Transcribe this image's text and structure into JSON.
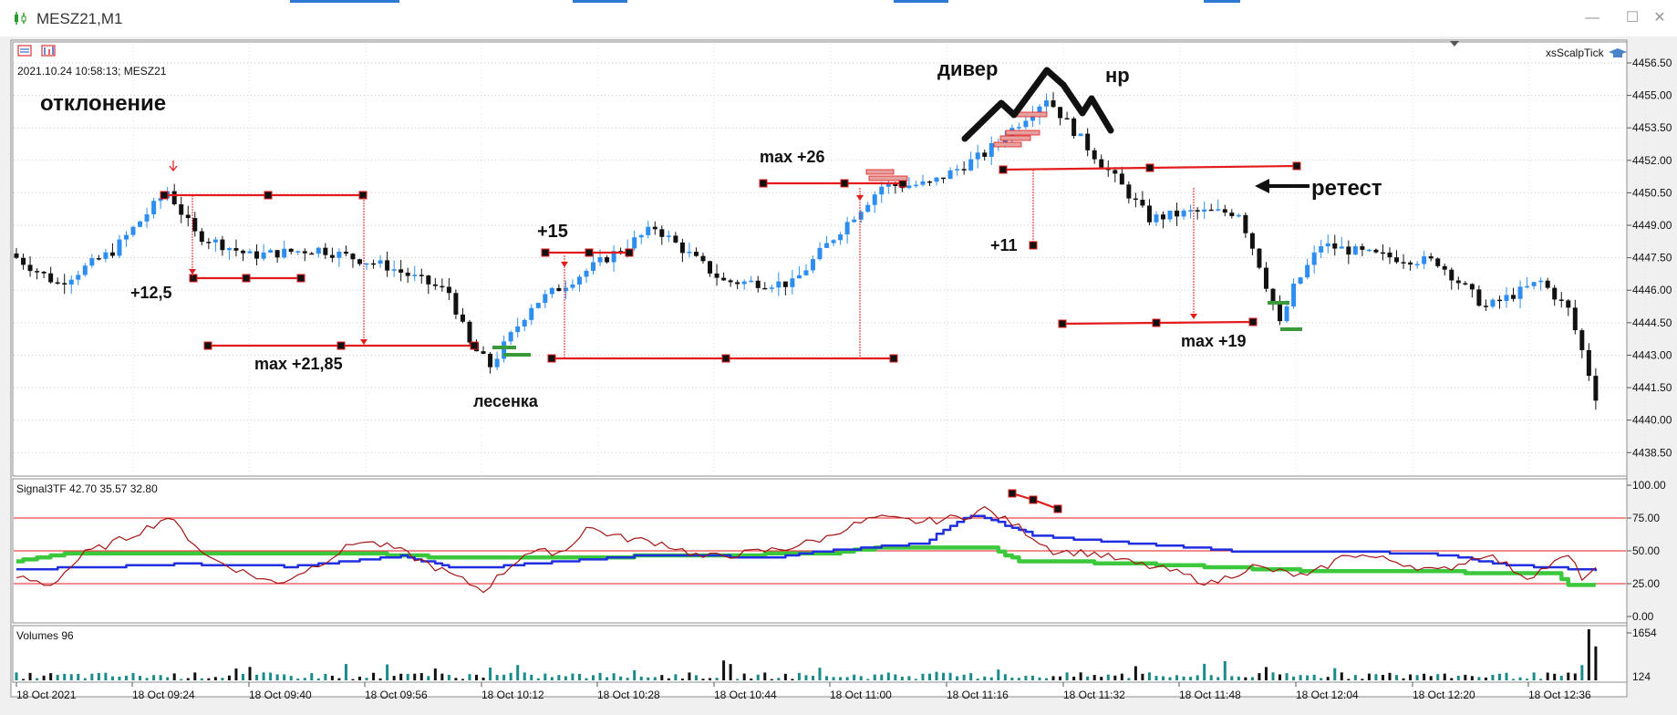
{
  "window": {
    "title": "MESZ21,M1",
    "minimize_icon": "minimize-icon",
    "maximize_icon": "maximize-icon",
    "close_icon": "close-icon"
  },
  "colors": {
    "bull": "#2d8ef0",
    "bear": "#111111",
    "annot_red": "#e31b1b",
    "grid": "#c8c8c8",
    "bg": "#f0f0f0",
    "rsi": "#a31515",
    "blue_line": "#1f2fe0",
    "green_line": "#3cc83c",
    "vol_up": "#1a8a8a",
    "vol_down": "#111111"
  },
  "chart_info": {
    "datetime_label": "2021.10.24 10:58:13; MESZ21",
    "indicator_name": "xsScalpTick"
  },
  "chart_data": [
    {
      "type": "candlestick",
      "ylim": [
        4437.5,
        4457.3
      ],
      "y_ticks": [
        "4456.50",
        "4455.00",
        "4453.50",
        "4452.00",
        "4450.50",
        "4449.00",
        "4447.50",
        "4446.00",
        "4444.50",
        "4443.00",
        "4441.50",
        "4440.00",
        "4438.50"
      ],
      "x_labels": [
        "18 Oct 2021",
        "18 Oct 09:24",
        "18 Oct 09:40",
        "18 Oct 09:56",
        "18 Oct 10:12",
        "18 Oct 10:28",
        "18 Oct 10:44",
        "18 Oct 11:00",
        "18 Oct 11:16",
        "18 Oct 11:32",
        "18 Oct 11:48",
        "18 Oct 12:04",
        "18 Oct 12:20",
        "18 Oct 12:36"
      ],
      "close_anchors": [
        [
          0,
          4447.5
        ],
        [
          6,
          4446.3
        ],
        [
          14,
          4447.8
        ],
        [
          22,
          4450.6
        ],
        [
          26,
          4448.6
        ],
        [
          34,
          4447.6
        ],
        [
          44,
          4447.9
        ],
        [
          54,
          4447.1
        ],
        [
          63,
          4445.9
        ],
        [
          66,
          4443.5
        ],
        [
          69,
          4442.5
        ],
        [
          75,
          4445.3
        ],
        [
          86,
          4447.5
        ],
        [
          93,
          4448.9
        ],
        [
          103,
          4446.4
        ],
        [
          113,
          4446.3
        ],
        [
          120,
          4448.8
        ],
        [
          126,
          4450.8
        ],
        [
          133,
          4450.9
        ],
        [
          141,
          4452.3
        ],
        [
          150,
          4454.9
        ],
        [
          156,
          4452.6
        ],
        [
          161,
          4450.8
        ],
        [
          165,
          4449.3
        ],
        [
          171,
          4449.6
        ],
        [
          178,
          4449.6
        ],
        [
          181,
          4447.2
        ],
        [
          184,
          4444.4
        ],
        [
          186,
          4446.1
        ],
        [
          190,
          4448.1
        ],
        [
          198,
          4447.6
        ],
        [
          207,
          4447.3
        ],
        [
          214,
          4445.2
        ],
        [
          222,
          4446.4
        ],
        [
          226,
          4445.1
        ],
        [
          228,
          4443.2
        ],
        [
          230,
          4441.1
        ]
      ]
    },
    {
      "type": "line",
      "title": "Signal3TF 42.70 35.57 32.80",
      "ylim": [
        0,
        100
      ],
      "y_ticks": [
        "100.00",
        "75.00",
        "50.00",
        "25.00",
        "0.00"
      ],
      "levels": [
        25,
        50,
        75
      ],
      "series": [
        {
          "color": "#a31515",
          "anchors": [
            [
              0,
              30
            ],
            [
              5,
              24
            ],
            [
              10,
              48
            ],
            [
              16,
              60
            ],
            [
              20,
              70
            ],
            [
              22,
              76
            ],
            [
              28,
              45
            ],
            [
              34,
              32
            ],
            [
              38,
              25
            ],
            [
              44,
              40
            ],
            [
              50,
              58
            ],
            [
              55,
              52
            ],
            [
              62,
              35
            ],
            [
              68,
              20
            ],
            [
              74,
              48
            ],
            [
              80,
              50
            ],
            [
              83,
              68
            ],
            [
              88,
              60
            ],
            [
              94,
              56
            ],
            [
              100,
              45
            ],
            [
              106,
              48
            ],
            [
              112,
              52
            ],
            [
              118,
              60
            ],
            [
              120,
              66
            ],
            [
              125,
              75
            ],
            [
              132,
              72
            ],
            [
              138,
              76
            ],
            [
              141,
              82
            ],
            [
              146,
              68
            ],
            [
              151,
              50
            ],
            [
              157,
              48
            ],
            [
              163,
              40
            ],
            [
              168,
              35
            ],
            [
              174,
              25
            ],
            [
              180,
              38
            ],
            [
              188,
              30
            ],
            [
              194,
              48
            ],
            [
              201,
              42
            ],
            [
              207,
              34
            ],
            [
              214,
              48
            ],
            [
              220,
              30
            ],
            [
              226,
              46
            ],
            [
              228,
              30
            ],
            [
              230,
              35
            ]
          ]
        },
        {
          "color": "#1f2fe0",
          "anchors": [
            [
              0,
              36
            ],
            [
              14,
              38
            ],
            [
              24,
              40
            ],
            [
              40,
              38
            ],
            [
              56,
              46
            ],
            [
              64,
              37
            ],
            [
              70,
              38
            ],
            [
              74,
              40
            ],
            [
              88,
              45
            ],
            [
              92,
              47
            ],
            [
              110,
              45
            ],
            [
              118,
              50
            ],
            [
              132,
              56
            ],
            [
              138,
              75
            ],
            [
              140,
              77
            ],
            [
              148,
              62
            ],
            [
              152,
              60
            ],
            [
              180,
              49
            ],
            [
              198,
              49
            ],
            [
              208,
              47
            ],
            [
              216,
              40
            ],
            [
              230,
              35
            ]
          ]
        },
        {
          "color": "#3cc83c",
          "anchors": [
            [
              0,
              42
            ],
            [
              8,
              48
            ],
            [
              50,
              48
            ],
            [
              62,
              45
            ],
            [
              80,
              45
            ],
            [
              118,
              48
            ],
            [
              125,
              52
            ],
            [
              142,
              52
            ],
            [
              146,
              42
            ],
            [
              160,
              41
            ],
            [
              188,
              35
            ],
            [
              224,
              33
            ],
            [
              226,
              24
            ],
            [
              230,
              24
            ]
          ]
        }
      ]
    },
    {
      "type": "bar",
      "title": "Volumes 96",
      "y_ticks": [
        "1654",
        "124"
      ],
      "ylim": [
        0,
        1654
      ]
    }
  ],
  "annotations": [
    {
      "text": "отклонение",
      "size": 24
    },
    {
      "text": "+12,5",
      "size": 18
    },
    {
      "text": "max +21,85",
      "size": 18
    },
    {
      "text": "лесенка",
      "size": 18
    },
    {
      "text": "+15",
      "size": 20
    },
    {
      "text": "max +26",
      "size": 18
    },
    {
      "text": "дивер",
      "size": 22
    },
    {
      "text": "нр",
      "size": 22
    },
    {
      "text": "+11",
      "size": 18
    },
    {
      "text": "ретест",
      "size": 24
    },
    {
      "text": "max +19",
      "size": 18
    }
  ]
}
